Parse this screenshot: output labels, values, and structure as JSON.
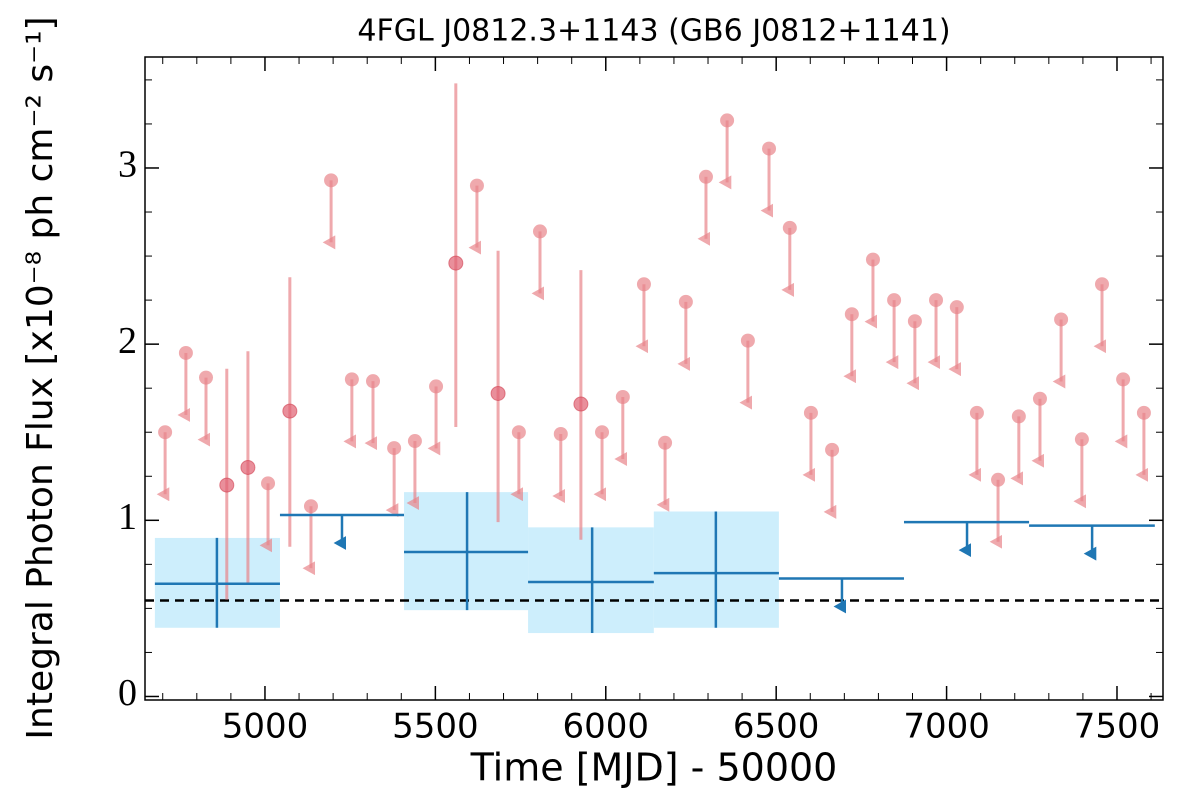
{
  "chart_data": {
    "type": "errorbar",
    "title": "4FGL J0812.3+1143 (GB6 J0812+1141)",
    "x_label": "Time [MJD] - 50000",
    "y_label": "Integral Photon Flux [x10⁻⁸ ph cm⁻² s⁻¹]",
    "xlim": [
      4648,
      7635
    ],
    "ylim": [
      -0.02,
      3.63
    ],
    "xticks": [
      5000,
      5500,
      6000,
      6500,
      7000,
      7500
    ],
    "yticks": [
      0,
      1,
      2,
      3
    ],
    "xminorticks": [
      4700,
      4800,
      4900,
      5100,
      5200,
      5300,
      5400,
      5600,
      5700,
      5800,
      5900,
      6100,
      6200,
      6300,
      6400,
      6600,
      6700,
      6800,
      6900,
      7100,
      7200,
      7300,
      7400,
      7600
    ],
    "yminorticks": [
      0.25,
      0.5,
      0.75,
      1.25,
      1.5,
      1.75,
      2.25,
      2.5,
      2.75,
      3.25,
      3.5
    ],
    "reference_line": 0.545,
    "series": [
      {
        "color": "#e8858a",
        "x": [
          4707,
          4768,
          4827,
          4888,
          4950,
          5009,
          5073,
          5135,
          5194,
          5255,
          5317,
          5379,
          5440,
          5502,
          5560,
          5622,
          5684,
          5745,
          5807,
          5868,
          5927,
          5989,
          6050,
          6112,
          6174,
          6235,
          6294,
          6356,
          6417,
          6479,
          6540,
          6602,
          6664,
          6722,
          6784,
          6846,
          6907,
          6969,
          7030,
          7089,
          7151,
          7212,
          7274,
          7336,
          7397,
          7456,
          7518,
          7579
        ],
        "values": [
          1.5,
          1.95,
          1.81,
          1.2,
          1.3,
          1.21,
          1.62,
          1.08,
          2.93,
          1.8,
          1.79,
          1.41,
          1.45,
          1.76,
          2.46,
          2.9,
          1.72,
          1.5,
          2.64,
          1.49,
          1.66,
          1.5,
          1.7,
          2.34,
          1.44,
          2.24,
          2.95,
          3.27,
          2.02,
          3.11,
          2.66,
          1.61,
          1.4,
          2.17,
          2.48,
          2.25,
          2.13,
          2.25,
          2.21,
          1.61,
          1.23,
          1.59,
          1.69,
          2.14,
          1.46,
          2.34,
          1.8,
          1.61
        ],
        "upper_limit": [
          true,
          true,
          true,
          false,
          false,
          true,
          false,
          true,
          true,
          true,
          true,
          true,
          true,
          true,
          false,
          true,
          false,
          true,
          true,
          true,
          false,
          true,
          true,
          true,
          true,
          true,
          true,
          true,
          true,
          true,
          true,
          true,
          true,
          true,
          true,
          true,
          true,
          true,
          true,
          true,
          true,
          true,
          true,
          true,
          true,
          true,
          true,
          true
        ],
        "err_low": [
          null,
          null,
          null,
          0.55,
          0.64,
          null,
          0.85,
          null,
          null,
          null,
          null,
          null,
          null,
          null,
          1.53,
          null,
          0.99,
          null,
          null,
          null,
          0.89,
          null,
          null,
          null,
          null,
          null,
          null,
          null,
          null,
          null,
          null,
          null,
          null,
          null,
          null,
          null,
          null,
          null,
          null,
          null,
          null,
          null,
          null,
          null,
          null,
          null,
          null,
          null
        ],
        "err_high": [
          null,
          null,
          null,
          1.86,
          1.96,
          null,
          2.38,
          null,
          null,
          null,
          null,
          null,
          null,
          null,
          3.48,
          null,
          2.53,
          null,
          null,
          null,
          2.42,
          null,
          null,
          null,
          null,
          null,
          null,
          null,
          null,
          null,
          null,
          null,
          null,
          null,
          null,
          null,
          null,
          null,
          null,
          null,
          null,
          null,
          null,
          null,
          null,
          null,
          null,
          null
        ]
      },
      {
        "color": "#1f77b4",
        "box_color": "#cdeefc",
        "bin_edges": [
          4677,
          5044,
          5408,
          5772,
          6141,
          6508,
          6875,
          7242,
          7611
        ],
        "x": [
          4859,
          5226,
          5593,
          5960,
          6323,
          6693,
          7060,
          7427
        ],
        "values": [
          0.64,
          1.03,
          0.82,
          0.65,
          0.7,
          0.67,
          0.99,
          0.97
        ],
        "upper_limit": [
          false,
          true,
          false,
          false,
          false,
          true,
          true,
          true
        ],
        "err_low": [
          0.39,
          null,
          0.49,
          0.36,
          0.39,
          null,
          null,
          null
        ],
        "err_high": [
          0.9,
          null,
          1.16,
          0.96,
          1.05,
          null,
          null,
          null
        ]
      }
    ]
  }
}
